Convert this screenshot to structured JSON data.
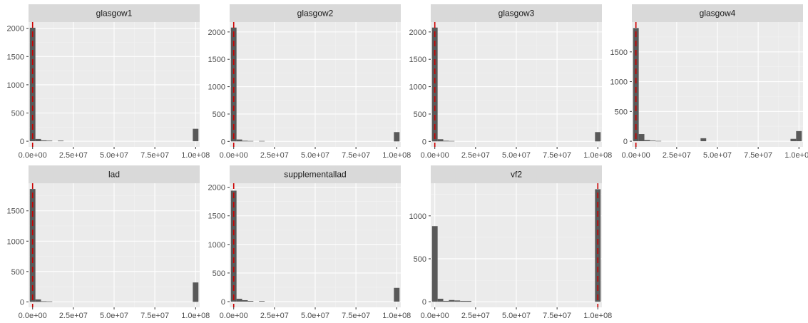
{
  "chart_data": {
    "type": "bar",
    "facet_layout": "facet_wrap",
    "grid": true,
    "colors": {
      "panel_bg": "#ebebeb",
      "strip_bg": "#d9d9d9",
      "grid_major": "#ffffff",
      "grid_minor": "#f2f2f2",
      "bar_fill": "#595959",
      "vline": "#cc0000",
      "text": "#4d4d4d"
    },
    "x_ticks": [
      0,
      25000000,
      50000000,
      75000000,
      100000000
    ],
    "x_tick_labels": [
      "0.0e+00",
      "2.5e+07",
      "5.0e+07",
      "7.5e+07",
      "1.0e+08"
    ],
    "xlim": [
      -2500000,
      102500000
    ],
    "bin_width": 3448276,
    "panels": [
      {
        "strip": "glasgow1",
        "ylim": [
          -100,
          2110
        ],
        "y_ticks": [
          0,
          500,
          1000,
          1500,
          2000
        ],
        "y_tick_labels": [
          "0",
          "500",
          "1000",
          "1500",
          "2000"
        ],
        "vline_x": 0,
        "bins_x": [
          0,
          3448276,
          6896552,
          10344828,
          17241379,
          100000000
        ],
        "counts": [
          2010,
          40,
          15,
          10,
          10,
          220
        ]
      },
      {
        "strip": "glasgow2",
        "ylim": [
          -100,
          2180
        ],
        "y_ticks": [
          0,
          500,
          1000,
          1500,
          2000
        ],
        "y_tick_labels": [
          "0",
          "500",
          "1000",
          "1500",
          "2000"
        ],
        "vline_x": 0,
        "bins_x": [
          0,
          3448276,
          6896552,
          10344828,
          17241379,
          100000000
        ],
        "counts": [
          2080,
          35,
          12,
          8,
          8,
          170
        ]
      },
      {
        "strip": "glasgow3",
        "ylim": [
          -100,
          2180
        ],
        "y_ticks": [
          0,
          500,
          1000,
          1500,
          2000
        ],
        "y_tick_labels": [
          "0",
          "500",
          "1000",
          "1500",
          "2000"
        ],
        "vline_x": 0,
        "bins_x": [
          0,
          3448276,
          6896552,
          10344828,
          100000000
        ],
        "counts": [
          2080,
          40,
          12,
          8,
          170
        ]
      },
      {
        "strip": "glasgow4",
        "ylim": [
          -95,
          2000
        ],
        "y_ticks": [
          0,
          500,
          1000,
          1500
        ],
        "y_tick_labels": [
          "0",
          "500",
          "1000",
          "1500"
        ],
        "vline_x": 0,
        "bins_x": [
          0,
          3448276,
          6896552,
          10344828,
          13793103,
          41379310,
          96551724,
          100000000
        ],
        "counts": [
          1900,
          120,
          20,
          10,
          5,
          50,
          40,
          170
        ]
      },
      {
        "strip": "lad",
        "ylim": [
          -90,
          1955
        ],
        "y_ticks": [
          0,
          500,
          1000,
          1500
        ],
        "y_tick_labels": [
          "0",
          "500",
          "1000",
          "1500"
        ],
        "vline_x": 0,
        "bins_x": [
          0,
          3448276,
          6896552,
          10344828,
          100000000
        ],
        "counts": [
          1860,
          40,
          10,
          8,
          320
        ]
      },
      {
        "strip": "supplementallad",
        "ylim": [
          -100,
          2070
        ],
        "y_ticks": [
          0,
          500,
          1000,
          1500,
          2000
        ],
        "y_tick_labels": [
          "0",
          "500",
          "1000",
          "1500",
          "2000"
        ],
        "vline_x": 0,
        "bins_x": [
          0,
          3448276,
          6896552,
          10344828,
          17241379,
          100000000
        ],
        "counts": [
          1940,
          50,
          25,
          12,
          10,
          240
        ]
      },
      {
        "strip": "vf2",
        "ylim": [
          -65,
          1380
        ],
        "y_ticks": [
          0,
          500,
          1000
        ],
        "y_tick_labels": [
          "0",
          "500",
          "1000"
        ],
        "vline_x": 100000000,
        "bins_x": [
          0,
          3448276,
          6896552,
          10344828,
          13793103,
          17241379,
          20689655,
          100000000
        ],
        "counts": [
          880,
          35,
          10,
          20,
          15,
          10,
          10,
          1310
        ]
      }
    ]
  }
}
